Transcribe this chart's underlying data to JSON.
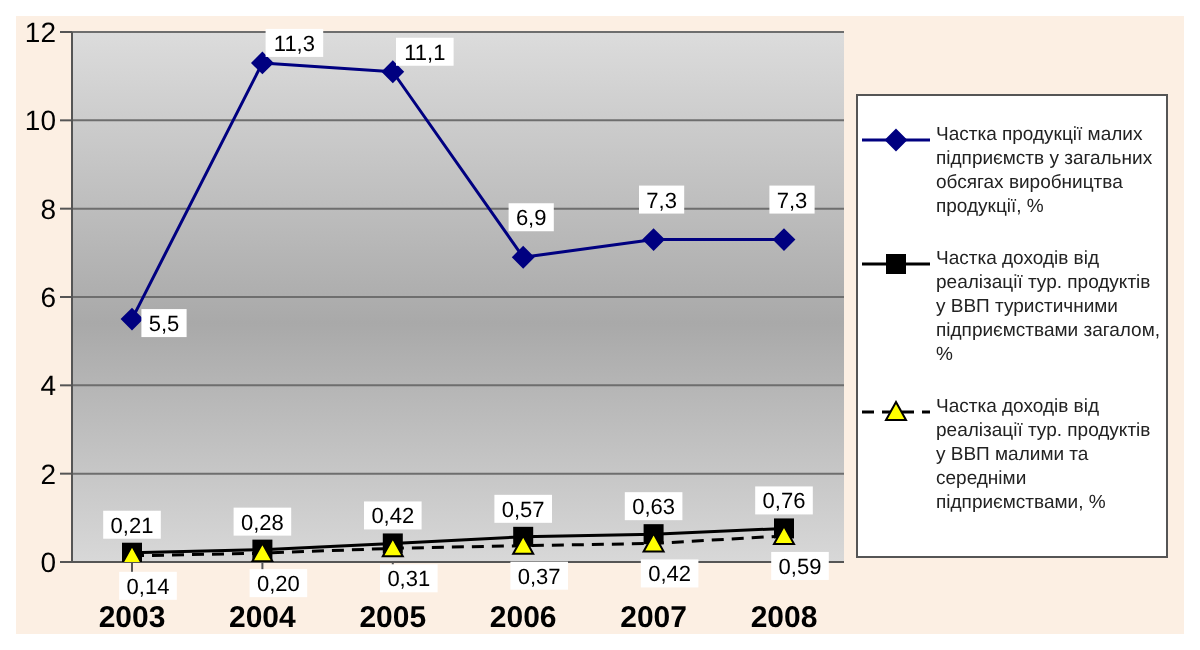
{
  "chart_data": {
    "type": "line",
    "categories": [
      "2003",
      "2004",
      "2005",
      "2006",
      "2007",
      "2008"
    ],
    "series": [
      {
        "name": "Частка продукції малих підприємств у загальних обсягах виробництва продукції, %",
        "color": "#000080",
        "marker": "diamond",
        "line_style": "solid",
        "values": [
          5.5,
          11.3,
          11.1,
          6.9,
          7.3,
          7.3
        ],
        "value_labels": [
          "5,5",
          "11,3",
          "11,1",
          "6,9",
          "7,3",
          "7,3"
        ]
      },
      {
        "name": "Частка доходів від реалізації тур. продуктів у ВВП туристичними підприємствами загалом, %",
        "color": "#000000",
        "marker": "square",
        "line_style": "solid",
        "values": [
          0.21,
          0.28,
          0.42,
          0.57,
          0.63,
          0.76
        ],
        "value_labels": [
          "0,21",
          "0,28",
          "0,42",
          "0,57",
          "0,63",
          "0,76"
        ]
      },
      {
        "name": "Частка доходів від реалізації тур. продуктів у ВВП малими та середніми підприємствами, %",
        "color": "#ffff00",
        "marker": "triangle",
        "line_style": "dashed",
        "values": [
          0.14,
          0.2,
          0.31,
          0.37,
          0.42,
          0.59
        ],
        "value_labels": [
          "0,14",
          "0,20",
          "0,31",
          "0,37",
          "0,42",
          "0,59"
        ]
      }
    ],
    "ylim": [
      0,
      12
    ],
    "yticks": [
      0,
      2,
      4,
      6,
      8,
      10,
      12
    ],
    "grid": "y",
    "legend": "right"
  }
}
